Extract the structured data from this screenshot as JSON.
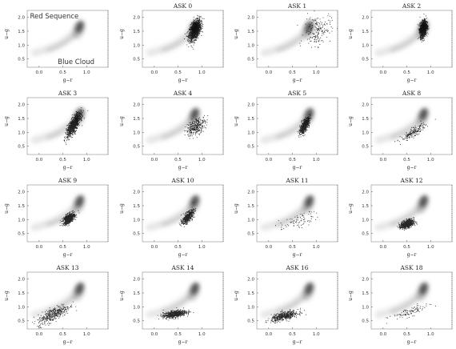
{
  "figure": {
    "xlabel": "g−r",
    "ylabel": "u−g",
    "xticks": [
      "0.0",
      "0.5",
      "1.0"
    ],
    "yticks": [
      "0.5",
      "1.0",
      "1.5",
      "2.0"
    ],
    "annotations": {
      "red_sequence": "Red Sequence",
      "blue_cloud": "Blue Cloud"
    },
    "background_color": "#888888",
    "point_color": "#000000"
  },
  "chart_data": [
    {
      "type": "scatter",
      "title": "",
      "xlim": [
        -0.25,
        1.45
      ],
      "ylim": [
        0.2,
        2.25
      ],
      "background": "density",
      "points": {
        "cx": 0,
        "cy": 0,
        "sx": 0,
        "sy": 0,
        "n": 0,
        "rho": 0
      }
    },
    {
      "type": "scatter",
      "title": "ASK 0",
      "xlim": [
        -0.25,
        1.45
      ],
      "ylim": [
        0.2,
        2.25
      ],
      "background": "density",
      "points": {
        "cx": 0.85,
        "cy": 1.55,
        "sx": 0.06,
        "sy": 0.18,
        "n": 1300,
        "rho": 0.5
      }
    },
    {
      "type": "scatter",
      "title": "ASK 1",
      "xlim": [
        -0.25,
        1.45
      ],
      "ylim": [
        0.2,
        2.25
      ],
      "background": "density",
      "points": {
        "cx": 1.02,
        "cy": 1.55,
        "sx": 0.14,
        "sy": 0.28,
        "n": 180,
        "rho": 0.2
      }
    },
    {
      "type": "scatter",
      "title": "ASK 2",
      "xlim": [
        -0.25,
        1.45
      ],
      "ylim": [
        0.2,
        2.25
      ],
      "background": "density",
      "points": {
        "cx": 0.84,
        "cy": 1.6,
        "sx": 0.035,
        "sy": 0.15,
        "n": 1200,
        "rho": 0.3
      }
    },
    {
      "type": "scatter",
      "title": "ASK 3",
      "xlim": [
        -0.25,
        1.45
      ],
      "ylim": [
        0.2,
        2.25
      ],
      "background": "density",
      "points": {
        "cx": 0.72,
        "cy": 1.27,
        "sx": 0.07,
        "sy": 0.2,
        "n": 1000,
        "rho": 0.75
      }
    },
    {
      "type": "scatter",
      "title": "ASK 4",
      "xlim": [
        -0.25,
        1.45
      ],
      "ylim": [
        0.2,
        2.25
      ],
      "background": "density",
      "points": {
        "cx": 0.87,
        "cy": 1.22,
        "sx": 0.1,
        "sy": 0.16,
        "n": 320,
        "rho": 0.5
      }
    },
    {
      "type": "scatter",
      "title": "ASK 5",
      "xlim": [
        -0.25,
        1.45
      ],
      "ylim": [
        0.2,
        2.25
      ],
      "background": "density",
      "points": {
        "cx": 0.75,
        "cy": 1.25,
        "sx": 0.05,
        "sy": 0.14,
        "n": 650,
        "rho": 0.7
      }
    },
    {
      "type": "scatter",
      "title": "ASK 8",
      "xlim": [
        -0.25,
        1.45
      ],
      "ylim": [
        0.2,
        2.25
      ],
      "background": "density",
      "points": {
        "cx": 0.63,
        "cy": 1.0,
        "sx": 0.13,
        "sy": 0.15,
        "n": 180,
        "rho": 0.85
      }
    },
    {
      "type": "scatter",
      "title": "ASK 9",
      "xlim": [
        -0.25,
        1.45
      ],
      "ylim": [
        0.2,
        2.25
      ],
      "background": "density",
      "points": {
        "cx": 0.62,
        "cy": 1.05,
        "sx": 0.06,
        "sy": 0.1,
        "n": 700,
        "rho": 0.55
      }
    },
    {
      "type": "scatter",
      "title": "ASK 10",
      "xlim": [
        -0.25,
        1.45
      ],
      "ylim": [
        0.2,
        2.25
      ],
      "background": "density",
      "points": {
        "cx": 0.7,
        "cy": 1.1,
        "sx": 0.06,
        "sy": 0.12,
        "n": 550,
        "rho": 0.7
      }
    },
    {
      "type": "scatter",
      "title": "ASK 11",
      "xlim": [
        -0.25,
        1.45
      ],
      "ylim": [
        0.2,
        2.25
      ],
      "background": "density",
      "points": {
        "cx": 0.62,
        "cy": 0.95,
        "sx": 0.2,
        "sy": 0.17,
        "n": 80,
        "rho": 0.7
      }
    },
    {
      "type": "scatter",
      "title": "ASK 12",
      "xlim": [
        -0.25,
        1.45
      ],
      "ylim": [
        0.2,
        2.25
      ],
      "background": "density",
      "points": {
        "cx": 0.5,
        "cy": 0.85,
        "sx": 0.07,
        "sy": 0.08,
        "n": 650,
        "rho": 0.4
      }
    },
    {
      "type": "scatter",
      "title": "ASK 13",
      "xlim": [
        -0.25,
        1.45
      ],
      "ylim": [
        0.2,
        2.25
      ],
      "background": "density",
      "points": {
        "cx": 0.3,
        "cy": 0.75,
        "sx": 0.17,
        "sy": 0.18,
        "n": 380,
        "rho": 0.75
      }
    },
    {
      "type": "scatter",
      "title": "ASK 14",
      "xlim": [
        -0.25,
        1.45
      ],
      "ylim": [
        0.2,
        2.25
      ],
      "background": "density",
      "points": {
        "cx": 0.42,
        "cy": 0.75,
        "sx": 0.12,
        "sy": 0.07,
        "n": 650,
        "rho": 0.5
      }
    },
    {
      "type": "scatter",
      "title": "ASK 16",
      "xlim": [
        -0.25,
        1.45
      ],
      "ylim": [
        0.2,
        2.25
      ],
      "background": "density",
      "points": {
        "cx": 0.33,
        "cy": 0.68,
        "sx": 0.14,
        "sy": 0.09,
        "n": 520,
        "rho": 0.6
      }
    },
    {
      "type": "scatter",
      "title": "ASK 18",
      "xlim": [
        -0.25,
        1.45
      ],
      "ylim": [
        0.2,
        2.25
      ],
      "background": "density",
      "points": {
        "cx": 0.55,
        "cy": 0.82,
        "sx": 0.2,
        "sy": 0.13,
        "n": 100,
        "rho": 0.8
      }
    }
  ]
}
